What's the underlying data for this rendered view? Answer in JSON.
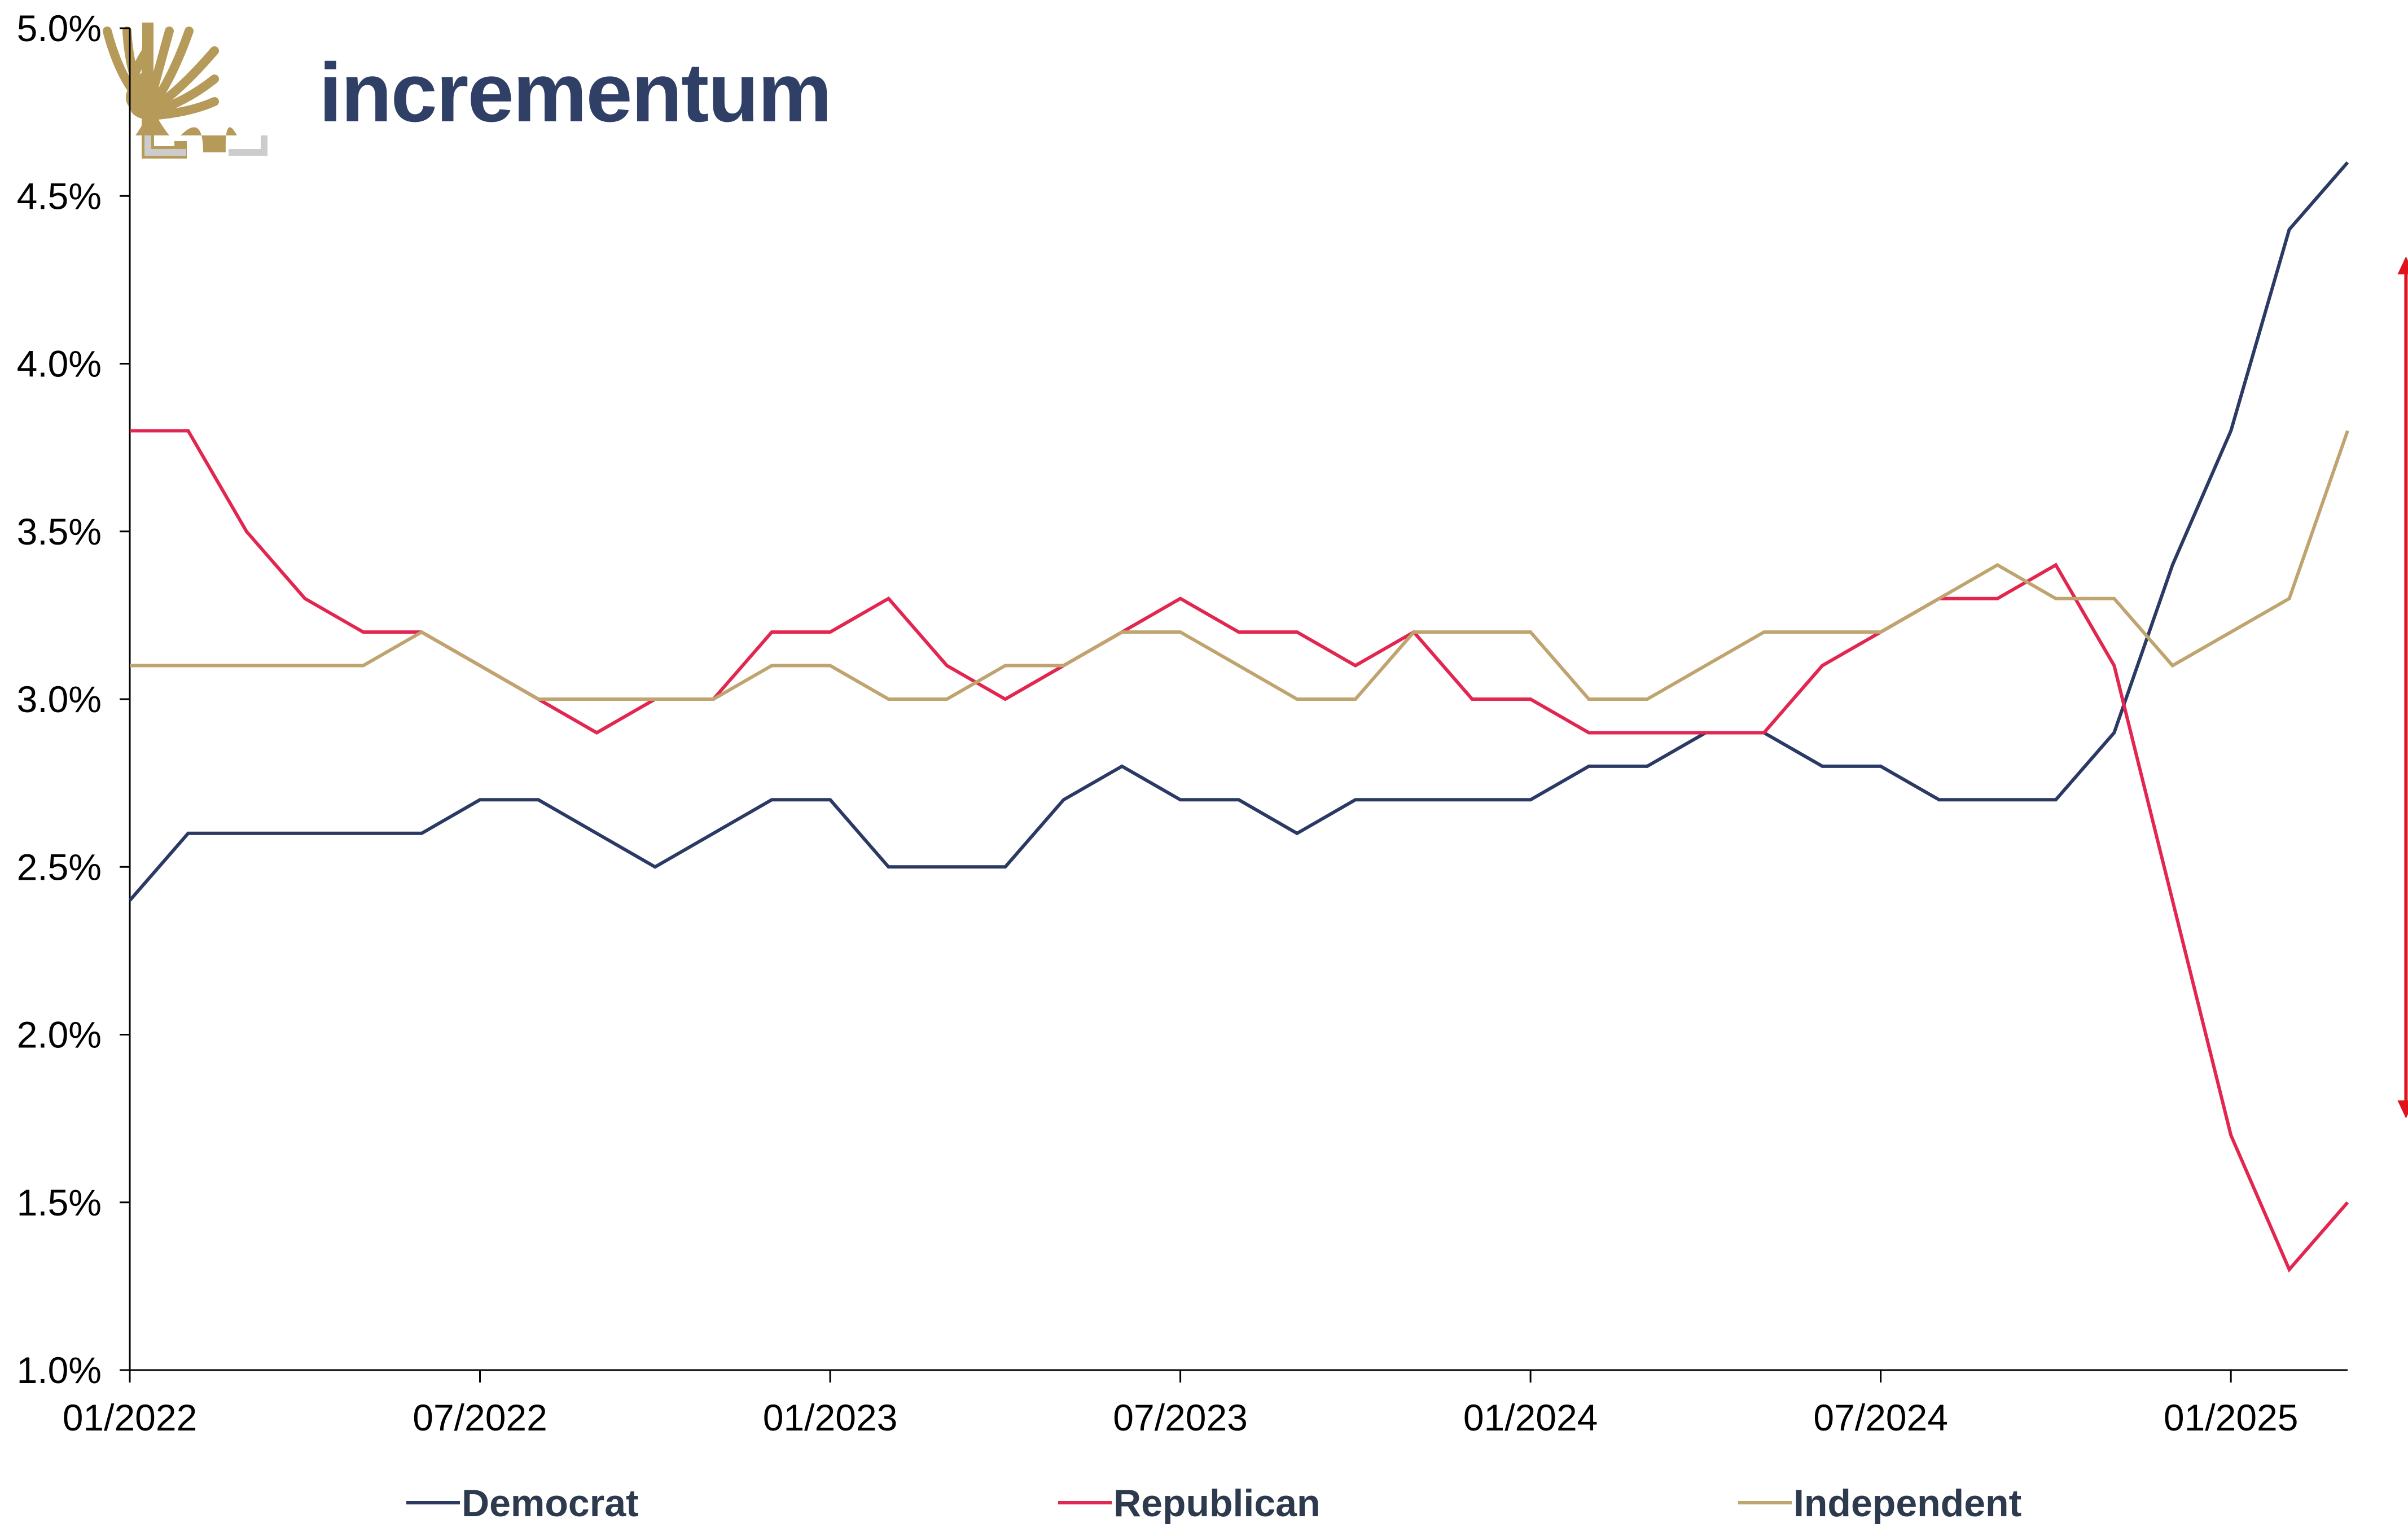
{
  "logo": {
    "text": "incrementum",
    "icon": "tree-logo-icon",
    "colors": {
      "text": "#2f3f66",
      "tree": "#b59a5a",
      "frame": "#cccccc"
    }
  },
  "colors": {
    "Democrat": "#2a3a64",
    "Republican": "#e3264f",
    "Independent": "#bfa46f",
    "arrow": "#e0141e",
    "axis": "#000000"
  },
  "chart_data": {
    "type": "line",
    "x_tick_labels": [
      "01/2022",
      "07/2022",
      "01/2023",
      "07/2023",
      "01/2024",
      "07/2024",
      "01/2025"
    ],
    "y_tick_labels": [
      "1.0%",
      "1.5%",
      "2.0%",
      "2.5%",
      "3.0%",
      "3.5%",
      "4.0%",
      "4.5%",
      "5.0%"
    ],
    "ylim": [
      1.0,
      5.0
    ],
    "y_unit": "%",
    "x": [
      "2022-01",
      "2022-02",
      "2022-03",
      "2022-04",
      "2022-05",
      "2022-06",
      "2022-07",
      "2022-08",
      "2022-09",
      "2022-10",
      "2022-11",
      "2022-12",
      "2023-01",
      "2023-02",
      "2023-03",
      "2023-04",
      "2023-05",
      "2023-06",
      "2023-07",
      "2023-08",
      "2023-09",
      "2023-10",
      "2023-11",
      "2023-12",
      "2024-01",
      "2024-02",
      "2024-03",
      "2024-04",
      "2024-05",
      "2024-06",
      "2024-07",
      "2024-08",
      "2024-09",
      "2024-10",
      "2024-11",
      "2024-12",
      "2025-01",
      "2025-02",
      "2025-03"
    ],
    "xlim": [
      "2022-01",
      "2025-03"
    ],
    "grid": false,
    "legend_position": "bottom",
    "series": [
      {
        "name": "Democrat",
        "values": [
          2.4,
          2.6,
          2.6,
          2.6,
          2.6,
          2.6,
          2.7,
          2.7,
          2.6,
          2.5,
          2.6,
          2.7,
          2.7,
          2.5,
          2.5,
          2.5,
          2.7,
          2.8,
          2.7,
          2.7,
          2.6,
          2.7,
          2.7,
          2.7,
          2.7,
          2.8,
          2.8,
          2.9,
          2.9,
          2.8,
          2.8,
          2.7,
          2.7,
          2.7,
          2.9,
          3.4,
          3.8,
          4.4,
          4.6
        ]
      },
      {
        "name": "Republican",
        "values": [
          3.8,
          3.8,
          3.5,
          3.3,
          3.2,
          3.2,
          3.1,
          3.0,
          2.9,
          3.0,
          3.0,
          3.2,
          3.2,
          3.3,
          3.1,
          3.0,
          3.1,
          3.2,
          3.3,
          3.2,
          3.2,
          3.1,
          3.2,
          3.0,
          3.0,
          2.9,
          2.9,
          2.9,
          2.9,
          3.1,
          3.2,
          3.3,
          3.3,
          3.4,
          3.1,
          2.4,
          1.7,
          1.3,
          1.5
        ]
      },
      {
        "name": "Independent",
        "values": [
          3.1,
          3.1,
          3.1,
          3.1,
          3.1,
          3.2,
          3.1,
          3.0,
          3.0,
          3.0,
          3.0,
          3.1,
          3.1,
          3.0,
          3.0,
          3.1,
          3.1,
          3.2,
          3.2,
          3.1,
          3.0,
          3.0,
          3.2,
          3.2,
          3.2,
          3.0,
          3.0,
          3.1,
          3.2,
          3.2,
          3.2,
          3.3,
          3.4,
          3.3,
          3.3,
          3.1,
          3.2,
          3.3,
          3.8
        ]
      }
    ],
    "annotations": [
      {
        "type": "double-arrow",
        "x": "2025-04",
        "y_from": 1.75,
        "y_to": 4.32,
        "description": "gap between Democrat and Republican series"
      }
    ]
  }
}
